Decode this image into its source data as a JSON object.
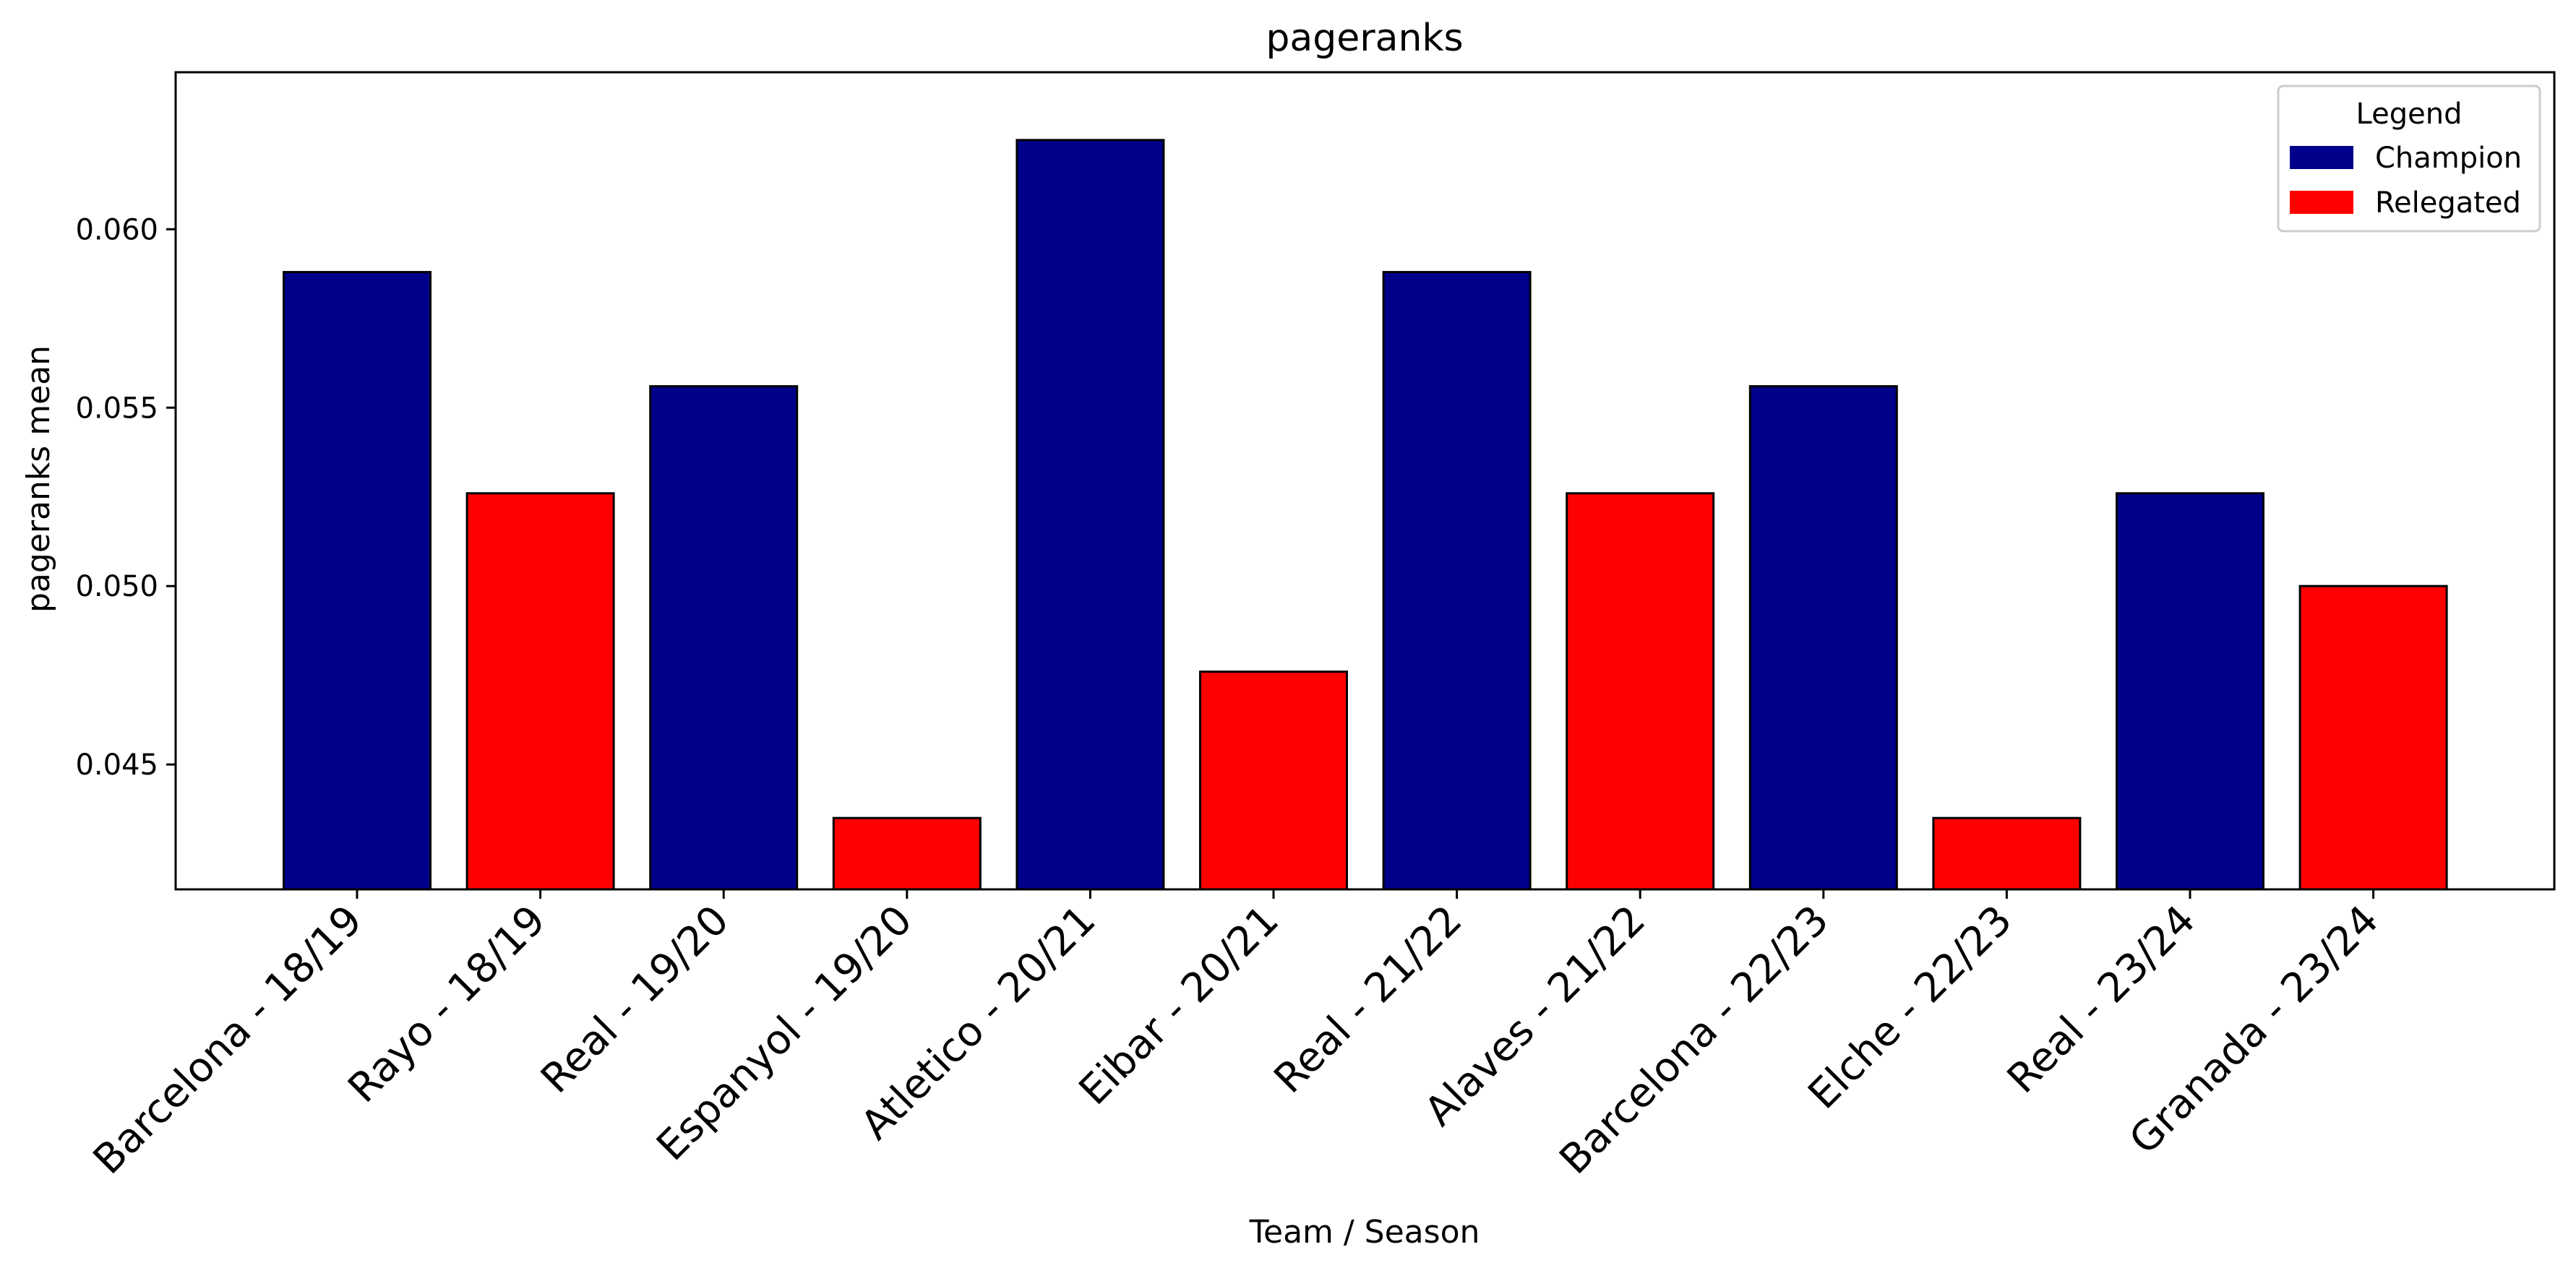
{
  "chart_data": {
    "type": "bar",
    "title": "pageranks",
    "xlabel": "Team / Season",
    "ylabel": "pageranks mean",
    "ylim": [
      0.0415,
      0.0644
    ],
    "yticks": [
      0.045,
      0.05,
      0.055,
      0.06
    ],
    "ytick_labels": [
      "0.045",
      "0.050",
      "0.055",
      "0.060"
    ],
    "grid": false,
    "categories": [
      "Barcelona - 18/19",
      "Rayo - 18/19",
      "Real - 19/20",
      "Espanyol - 19/20",
      "Atletico - 20/21",
      "Eibar - 20/21",
      "Real - 21/22",
      "Alaves - 21/22",
      "Barcelona - 22/23",
      "Elche - 22/23",
      "Real - 23/24",
      "Granada - 23/24"
    ],
    "values": [
      0.0588,
      0.0526,
      0.0556,
      0.0435,
      0.0625,
      0.0476,
      0.0588,
      0.0526,
      0.0556,
      0.0435,
      0.0526,
      0.05
    ],
    "groups": [
      "Champion",
      "Relegated",
      "Champion",
      "Relegated",
      "Champion",
      "Relegated",
      "Champion",
      "Relegated",
      "Champion",
      "Relegated",
      "Champion",
      "Relegated"
    ],
    "legend": {
      "title": "Legend",
      "placement": "top-right",
      "entries": [
        {
          "label": "Champion",
          "color": "#00008b"
        },
        {
          "label": "Relegated",
          "color": "#ff0000"
        }
      ]
    }
  }
}
